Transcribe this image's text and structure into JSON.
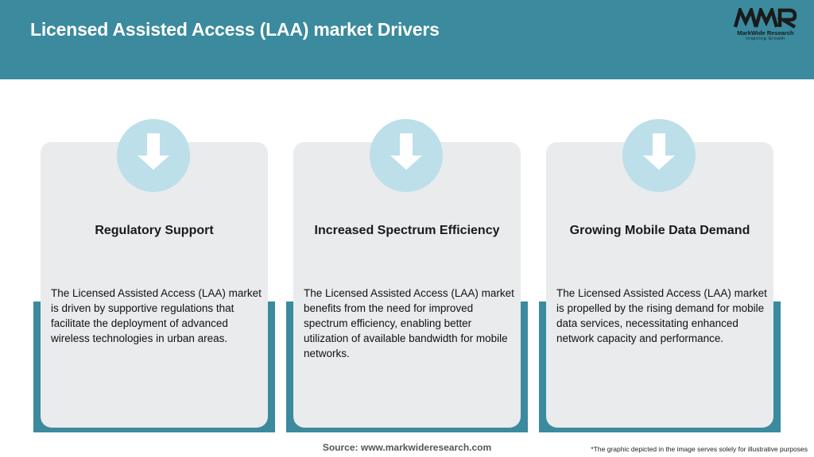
{
  "header": {
    "title": "Licensed Assisted Access (LAA) market Drivers",
    "logo": {
      "mark": "MWR",
      "name": "MarkWide Research",
      "tagline": "Inspiring Growth"
    }
  },
  "cards": [
    {
      "icon": "down-arrow-icon",
      "title": "Regulatory Support",
      "text": "The Licensed Assisted Access (LAA) market is driven by supportive regulations that facilitate the deployment of advanced wireless technologies in urban areas."
    },
    {
      "icon": "down-arrow-icon",
      "title": "Increased Spectrum Efficiency",
      "text": "The Licensed Assisted Access (LAA) market benefits from the need for improved spectrum efficiency, enabling better utilization of available bandwidth for mobile networks."
    },
    {
      "icon": "down-arrow-icon",
      "title": "Growing Mobile Data Demand",
      "text": "The Licensed Assisted Access (LAA) market is propelled by the rising demand for mobile data services, necessitating enhanced network capacity and performance."
    }
  ],
  "footer": {
    "source": "Source: www.markwideresearch.com",
    "disclaimer": "*The graphic depicted in the image serves solely for illustrative purposes"
  },
  "colors": {
    "accent": "#3b8a9e",
    "card_bg": "#e9ebed",
    "icon_circle": "#bcdfea"
  }
}
